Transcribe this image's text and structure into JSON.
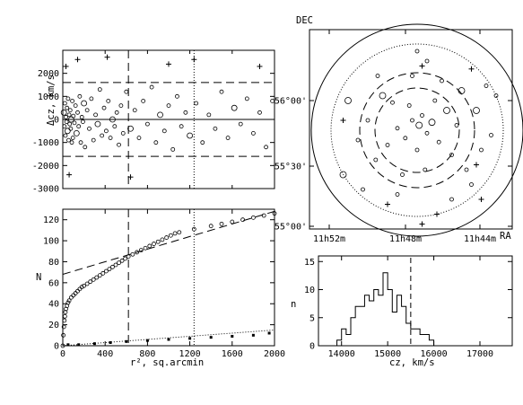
{
  "chart_data": [
    {
      "type": "scatter",
      "panel": "top-left",
      "ylabel": "Δcz, km/s",
      "xlim": [
        0,
        2000
      ],
      "ylim": [
        -3000,
        3000
      ],
      "yticks": [
        "-3000",
        "-2000",
        "-1000",
        "0",
        "1000",
        "2000"
      ],
      "hlines_dashed": [
        1600,
        -1600
      ],
      "hline_solid": 0,
      "vline_dashed": 620,
      "vline_dotted": 1240,
      "members": [
        [
          10,
          300
        ],
        [
          15,
          -300
        ],
        [
          20,
          700
        ],
        [
          25,
          -700
        ],
        [
          30,
          100
        ],
        [
          35,
          -100
        ],
        [
          40,
          500
        ],
        [
          45,
          -500
        ],
        [
          50,
          900
        ],
        [
          55,
          -900
        ],
        [
          60,
          200
        ],
        [
          65,
          -200
        ],
        [
          70,
          400
        ],
        [
          75,
          -400
        ],
        [
          80,
          0
        ],
        [
          85,
          -1000
        ],
        [
          90,
          800
        ],
        [
          95,
          -800
        ],
        [
          100,
          150
        ],
        [
          110,
          -150
        ],
        [
          120,
          600
        ],
        [
          130,
          -600
        ],
        [
          140,
          300
        ],
        [
          150,
          -300
        ],
        [
          160,
          1000
        ],
        [
          170,
          -1000
        ],
        [
          180,
          100
        ],
        [
          190,
          -100
        ],
        [
          200,
          700
        ],
        [
          210,
          -1200
        ],
        [
          230,
          400
        ],
        [
          250,
          -400
        ],
        [
          270,
          900
        ],
        [
          290,
          -900
        ],
        [
          310,
          200
        ],
        [
          330,
          -200
        ],
        [
          350,
          1300
        ],
        [
          370,
          -700
        ],
        [
          390,
          500
        ],
        [
          410,
          -500
        ],
        [
          430,
          800
        ],
        [
          450,
          -800
        ],
        [
          470,
          0
        ],
        [
          490,
          -300
        ],
        [
          510,
          300
        ],
        [
          530,
          -1100
        ],
        [
          550,
          600
        ],
        [
          570,
          -600
        ],
        [
          600,
          1200
        ],
        [
          640,
          -400
        ],
        [
          680,
          400
        ],
        [
          720,
          -800
        ],
        [
          760,
          800
        ],
        [
          800,
          -200
        ],
        [
          840,
          1400
        ],
        [
          880,
          -1000
        ],
        [
          920,
          200
        ],
        [
          960,
          -500
        ],
        [
          1000,
          600
        ],
        [
          1040,
          -1300
        ],
        [
          1080,
          1000
        ],
        [
          1120,
          -300
        ],
        [
          1160,
          300
        ],
        [
          1200,
          -700
        ],
        [
          1260,
          700
        ],
        [
          1320,
          -1000
        ],
        [
          1380,
          200
        ],
        [
          1440,
          -400
        ],
        [
          1500,
          1200
        ],
        [
          1560,
          -800
        ],
        [
          1620,
          500
        ],
        [
          1680,
          -200
        ],
        [
          1740,
          900
        ],
        [
          1800,
          -600
        ],
        [
          1860,
          300
        ],
        [
          1920,
          -1200
        ],
        [
          1980,
          800
        ]
      ],
      "nonmembers": [
        [
          30,
          2300
        ],
        [
          60,
          -2400
        ],
        [
          140,
          2600
        ],
        [
          420,
          2700
        ],
        [
          640,
          -2500
        ],
        [
          1000,
          2400
        ],
        [
          1240,
          2600
        ],
        [
          1860,
          2300
        ]
      ]
    },
    {
      "type": "line",
      "panel": "bottom-left",
      "xlabel": "r², sq.arcmin",
      "ylabel": "N",
      "xlim": [
        0,
        2000
      ],
      "ylim": [
        0,
        130
      ],
      "xticks": [
        "0",
        "400",
        "800",
        "1200",
        "1600",
        "2000"
      ],
      "yticks": [
        "0",
        "20",
        "40",
        "60",
        "80",
        "100",
        "120"
      ],
      "vline_dashed": 620,
      "vline_dotted": 1240,
      "fit_dashed": [
        [
          0,
          68
        ],
        [
          2000,
          128
        ]
      ],
      "fit_dotted": [
        [
          0,
          0
        ],
        [
          2000,
          15
        ]
      ],
      "cumulative_members": [
        [
          0,
          0
        ],
        [
          5,
          10
        ],
        [
          10,
          18
        ],
        [
          15,
          24
        ],
        [
          20,
          28
        ],
        [
          25,
          32
        ],
        [
          30,
          35
        ],
        [
          40,
          38
        ],
        [
          50,
          41
        ],
        [
          60,
          43
        ],
        [
          80,
          46
        ],
        [
          100,
          48
        ],
        [
          120,
          50
        ],
        [
          140,
          52
        ],
        [
          160,
          54
        ],
        [
          180,
          56
        ],
        [
          200,
          57
        ],
        [
          230,
          59
        ],
        [
          260,
          61
        ],
        [
          290,
          63
        ],
        [
          320,
          65
        ],
        [
          350,
          67
        ],
        [
          380,
          69
        ],
        [
          410,
          71
        ],
        [
          440,
          73
        ],
        [
          470,
          75
        ],
        [
          500,
          77
        ],
        [
          530,
          79
        ],
        [
          560,
          81
        ],
        [
          590,
          83
        ],
        [
          620,
          85
        ],
        [
          660,
          87
        ],
        [
          700,
          89
        ],
        [
          740,
          91
        ],
        [
          780,
          93
        ],
        [
          820,
          95
        ],
        [
          860,
          97
        ],
        [
          900,
          99
        ],
        [
          940,
          101
        ],
        [
          980,
          103
        ],
        [
          1020,
          105
        ],
        [
          1060,
          107
        ],
        [
          1100,
          108
        ],
        [
          1240,
          111
        ],
        [
          1400,
          114
        ],
        [
          1500,
          116
        ],
        [
          1600,
          118
        ],
        [
          1700,
          120
        ],
        [
          1800,
          122
        ],
        [
          1900,
          124
        ],
        [
          2000,
          126
        ]
      ],
      "cumulative_nonmembers": [
        [
          50,
          1
        ],
        [
          150,
          1
        ],
        [
          300,
          2
        ],
        [
          450,
          3
        ],
        [
          600,
          4
        ],
        [
          800,
          5
        ],
        [
          1000,
          6
        ],
        [
          1200,
          7
        ],
        [
          1400,
          8
        ],
        [
          1600,
          9
        ],
        [
          1800,
          10
        ],
        [
          1950,
          12
        ]
      ]
    },
    {
      "type": "scatter",
      "panel": "top-right",
      "ylabel": "DEC",
      "xlabel": "RA",
      "xticks": [
        "11h52m",
        "11h48m",
        "11h44m"
      ],
      "yticks": [
        "55°00'",
        "55°30'",
        "56°00'"
      ],
      "members": [
        [
          0.02,
          0.05
        ],
        [
          -0.05,
          0.1
        ],
        [
          0.1,
          -0.03
        ],
        [
          -0.12,
          -0.08
        ],
        [
          0.05,
          0.15
        ],
        [
          0.15,
          0.08
        ],
        [
          -0.2,
          0.02
        ],
        [
          0.22,
          -0.12
        ],
        [
          0.0,
          -0.2
        ],
        [
          -0.08,
          0.25
        ],
        [
          0.3,
          0.2
        ],
        [
          -0.3,
          -0.15
        ],
        [
          0.18,
          0.3
        ],
        [
          -0.25,
          0.28
        ],
        [
          0.35,
          -0.25
        ],
        [
          -0.35,
          0.35
        ],
        [
          0.4,
          0.05
        ],
        [
          -0.42,
          -0.3
        ],
        [
          0.08,
          -0.4
        ],
        [
          -0.15,
          -0.45
        ],
        [
          0.45,
          0.4
        ],
        [
          -0.5,
          0.1
        ],
        [
          0.5,
          -0.4
        ],
        [
          0.25,
          0.5
        ],
        [
          -0.05,
          0.55
        ],
        [
          0.6,
          0.2
        ],
        [
          -0.6,
          -0.1
        ],
        [
          0.55,
          -0.55
        ],
        [
          -0.4,
          0.55
        ],
        [
          0.65,
          -0.2
        ],
        [
          -0.7,
          0.3
        ],
        [
          0.7,
          0.45
        ],
        [
          0.1,
          0.7
        ],
        [
          -0.2,
          -0.65
        ],
        [
          0.75,
          -0.05
        ],
        [
          -0.75,
          -0.45
        ],
        [
          0.35,
          -0.7
        ],
        [
          -0.55,
          -0.6
        ],
        [
          0.8,
          0.35
        ],
        [
          0.0,
          0.8
        ]
      ],
      "nonmembers": [
        [
          0.05,
          0.65
        ],
        [
          0.55,
          0.62
        ],
        [
          -0.3,
          -0.75
        ],
        [
          0.2,
          -0.85
        ],
        [
          0.65,
          -0.7
        ],
        [
          -0.75,
          0.1
        ],
        [
          0.6,
          -0.35
        ],
        [
          0.05,
          -0.95
        ]
      ],
      "circles": [
        "solid",
        "dotted",
        "dashed",
        "dashed"
      ]
    },
    {
      "type": "bar",
      "panel": "bottom-right",
      "xlabel": "cz, km/s",
      "ylabel": "n",
      "xlim": [
        13500,
        17700
      ],
      "ylim": [
        0,
        16
      ],
      "xticks": [
        "14000",
        "15000",
        "16000",
        "17000"
      ],
      "yticks": [
        "0",
        "5",
        "10",
        "15"
      ],
      "bin_width": 100,
      "bin_edges_start": 13800,
      "values": [
        0,
        1,
        3,
        2,
        5,
        7,
        7,
        9,
        8,
        10,
        9,
        13,
        10,
        6,
        9,
        7,
        4,
        3,
        3,
        2,
        2,
        1,
        0
      ],
      "vline_dashed": 15500
    }
  ]
}
